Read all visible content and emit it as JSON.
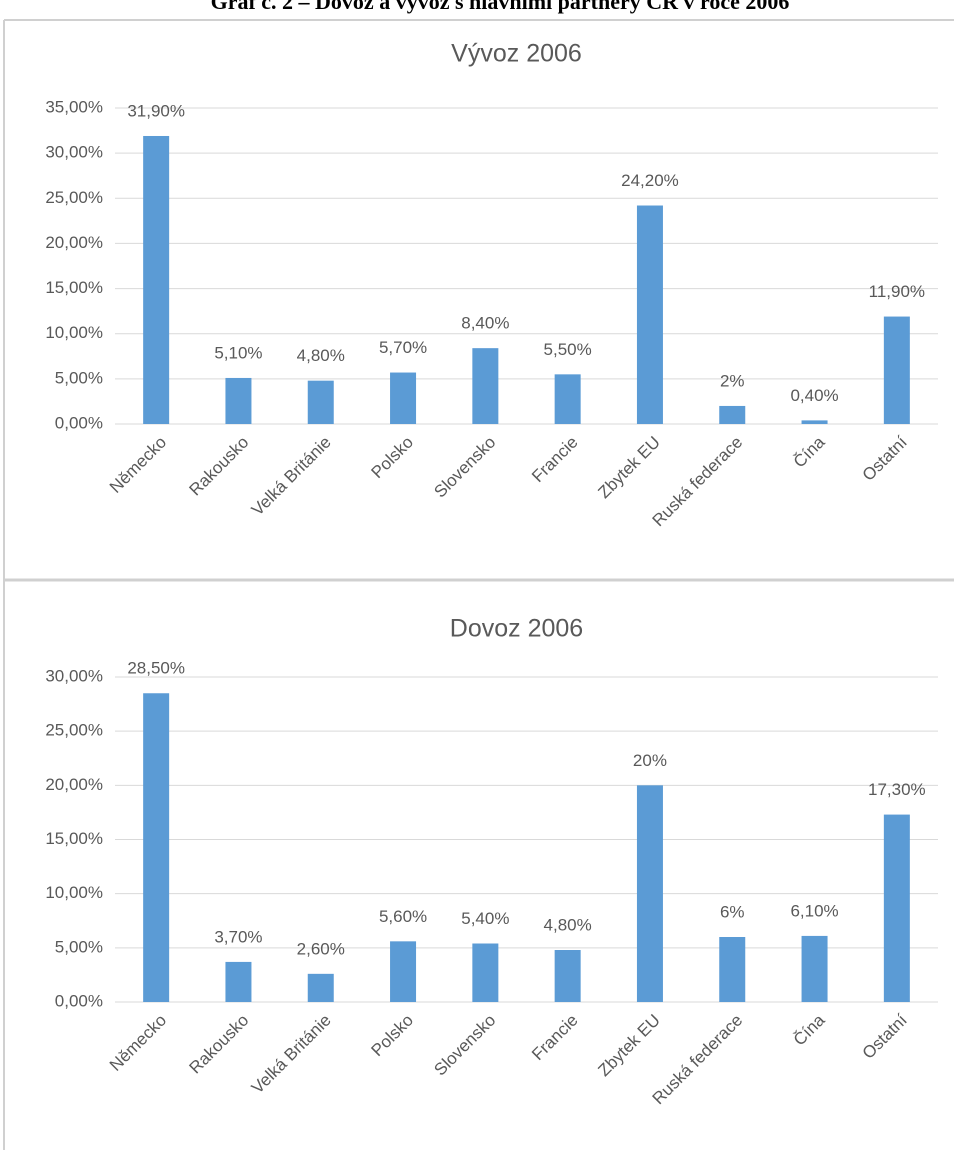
{
  "heading": "Graf č. 2 – Dovoz a vývoz s hlavními partnery ČR v roce 2006",
  "chart_data": [
    {
      "type": "bar",
      "title": "Vývoz 2006",
      "categories": [
        "Německo",
        "Rakousko",
        "Velká Británie",
        "Polsko",
        "Slovensko",
        "Francie",
        "Zbytek EU",
        "Ruská federace",
        "Čína",
        "Ostatní"
      ],
      "values": [
        31.9,
        5.1,
        4.8,
        5.7,
        8.4,
        5.5,
        24.2,
        2,
        0.4,
        11.9
      ],
      "value_labels": [
        "31,90%",
        "5,10%",
        "4,80%",
        "5,70%",
        "8,40%",
        "5,50%",
        "24,20%",
        "2%",
        "0,40%",
        "11,90%"
      ],
      "color": "#5b9bd5",
      "ylim": [
        0,
        35
      ],
      "yticks": [
        {
          "value": 0,
          "label": "0,00%"
        },
        {
          "value": 5,
          "label": "5,00%"
        },
        {
          "value": 10,
          "label": "10,00%"
        },
        {
          "value": 15,
          "label": "15,00%"
        },
        {
          "value": 20,
          "label": "20,00%"
        },
        {
          "value": 25,
          "label": "25,00%"
        },
        {
          "value": 30,
          "label": "30,00%"
        },
        {
          "value": 35,
          "label": "35,00%"
        }
      ],
      "grid": true
    },
    {
      "type": "bar",
      "title": "Dovoz 2006",
      "categories": [
        "Německo",
        "Rakousko",
        "Velká Británie",
        "Polsko",
        "Slovensko",
        "Francie",
        "Zbytek EU",
        "Ruská federace",
        "Čína",
        "Ostatní"
      ],
      "values": [
        28.5,
        3.7,
        2.6,
        5.6,
        5.4,
        4.8,
        20,
        6,
        6.1,
        17.3
      ],
      "value_labels": [
        "28,50%",
        "3,70%",
        "2,60%",
        "5,60%",
        "5,40%",
        "4,80%",
        "20%",
        "6%",
        "6,10%",
        "17,30%"
      ],
      "color": "#5b9bd5",
      "ylim": [
        0,
        30
      ],
      "yticks": [
        {
          "value": 0,
          "label": "0,00%"
        },
        {
          "value": 5,
          "label": "5,00%"
        },
        {
          "value": 10,
          "label": "10,00%"
        },
        {
          "value": 15,
          "label": "15,00%"
        },
        {
          "value": 20,
          "label": "20,00%"
        },
        {
          "value": 25,
          "label": "25,00%"
        },
        {
          "value": 30,
          "label": "30,00%"
        }
      ],
      "grid": true
    }
  ]
}
